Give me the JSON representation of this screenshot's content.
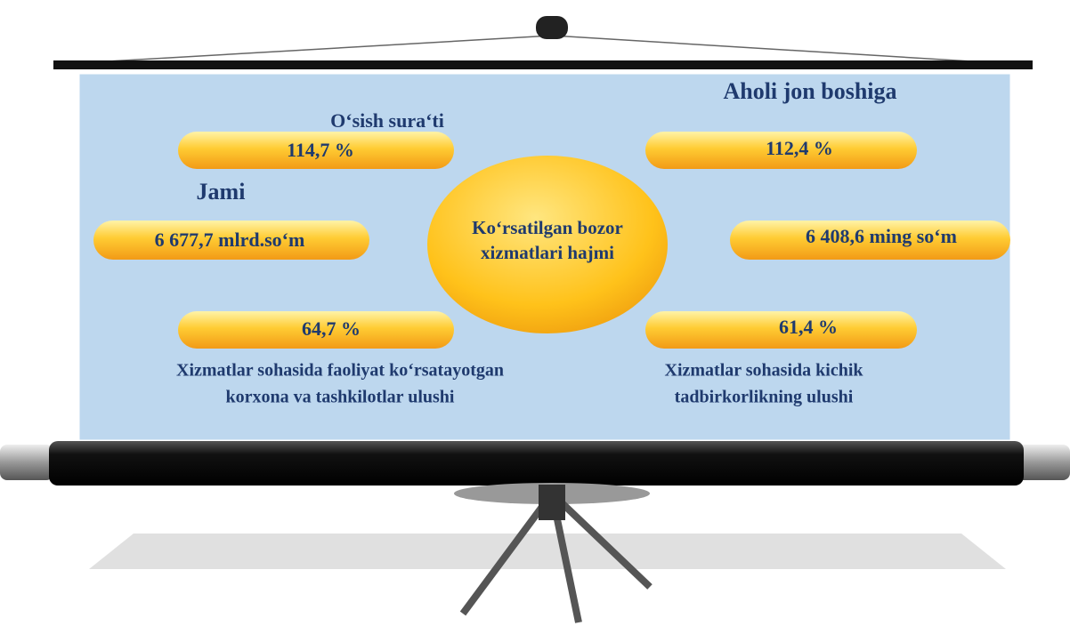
{
  "center": {
    "lines": [
      "Ko‘rsatilgan bozor",
      "xizmatlari hajmi"
    ]
  },
  "left": {
    "growth_title": "O‘sish sura‘ti",
    "growth_value": "114,7 %",
    "total_title": "Jami",
    "total_value": "6 677,7 mlrd.so‘m",
    "share_value": "64,7 %",
    "share_caption": [
      "Xizmatlar sohasida faoliyat ko‘rsatayotgan",
      "korxona va tashkilotlar ulushi"
    ]
  },
  "right": {
    "per_capita_title": "Aholi jon boshiga",
    "growth_value": "112,4 %",
    "per_capita_value": "6 408,6 ming so‘m",
    "share_value": "61,4 %",
    "share_caption": [
      "Xizmatlar sohasida kichik",
      "tadbirkorlikning ulushi"
    ]
  }
}
